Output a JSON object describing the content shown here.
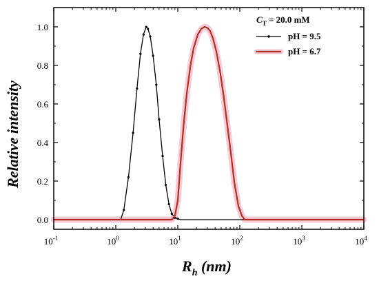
{
  "chart_data": {
    "type": "line",
    "title": "",
    "xlabel": {
      "main": "R",
      "sub": "h",
      "unit": " (nm)"
    },
    "ylabel": "Relative intensity",
    "xscale": "log",
    "xlim": [
      0.1,
      10000
    ],
    "ylim": [
      -0.05,
      1.1
    ],
    "grid": false,
    "legend_placement": "top-right",
    "x_ticks": [
      {
        "base": "10",
        "exp": "-1",
        "value": 0.1
      },
      {
        "base": "10",
        "exp": "0",
        "value": 1
      },
      {
        "base": "10",
        "exp": "1",
        "value": 10
      },
      {
        "base": "10",
        "exp": "2",
        "value": 100
      },
      {
        "base": "10",
        "exp": "3",
        "value": 1000
      },
      {
        "base": "10",
        "exp": "4",
        "value": 10000
      }
    ],
    "y_ticks": [
      {
        "label": "0.0",
        "value": 0.0
      },
      {
        "label": "0.2",
        "value": 0.2
      },
      {
        "label": "0.4",
        "value": 0.4
      },
      {
        "label": "0.6",
        "value": 0.6
      },
      {
        "label": "0.8",
        "value": 0.8
      },
      {
        "label": "1.0",
        "value": 1.0
      }
    ],
    "annotation": {
      "main": "C",
      "sub": "T",
      "rest": " = 20.0 mM"
    },
    "series": [
      {
        "name": "pH = 9.5",
        "color": "#000000",
        "marker": "dot",
        "x": [
          0.1,
          1.0,
          1.2,
          1.35,
          1.6,
          1.9,
          2.2,
          2.5,
          2.8,
          3.1,
          3.3,
          3.6,
          4.0,
          4.5,
          5.0,
          5.7,
          6.4,
          7.2,
          8.0,
          9.0,
          10.0,
          11.0,
          12.0,
          10000
        ],
        "y": [
          0.0,
          0.0,
          0.0,
          0.05,
          0.22,
          0.45,
          0.68,
          0.86,
          0.96,
          1.0,
          0.99,
          0.95,
          0.85,
          0.7,
          0.52,
          0.33,
          0.18,
          0.08,
          0.03,
          0.01,
          0.005,
          0.0,
          0.0,
          0.0
        ]
      },
      {
        "name": "pH = 6.7",
        "color": "#b03020",
        "glow": "#f4b8c8",
        "marker": "none",
        "x": [
          0.1,
          8.0,
          9.0,
          10.0,
          11.0,
          12.5,
          14.0,
          16.0,
          18.0,
          21.0,
          24.0,
          27.0,
          30.0,
          33.0,
          37.0,
          42.0,
          48.0,
          55.0,
          63.0,
          72.0,
          82.0,
          95.0,
          108.0,
          120.0,
          10000
        ],
        "y": [
          0.0,
          0.0,
          0.02,
          0.1,
          0.28,
          0.5,
          0.66,
          0.8,
          0.89,
          0.96,
          0.99,
          1.0,
          0.995,
          0.98,
          0.94,
          0.87,
          0.77,
          0.64,
          0.49,
          0.34,
          0.19,
          0.07,
          0.02,
          0.0,
          0.0
        ]
      }
    ]
  }
}
